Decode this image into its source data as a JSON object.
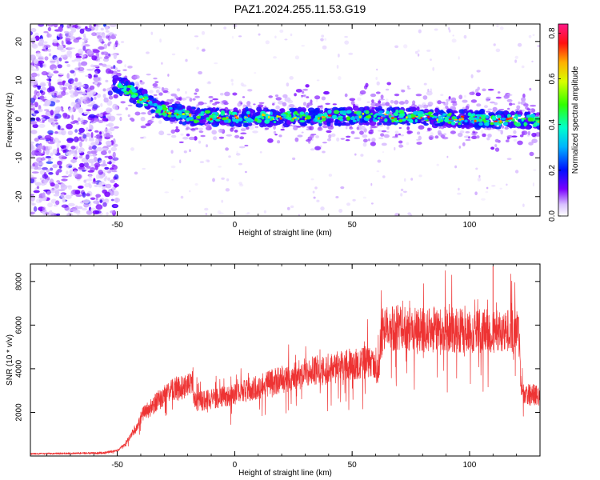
{
  "title": "PAZ1.2024.255.11.53.G19",
  "chart_data": [
    {
      "type": "heatmap",
      "xlabel": "Height of straight line (km)",
      "ylabel": "Frequency (Hz)",
      "xlim": [
        -87,
        130
      ],
      "ylim": [
        -25,
        24.5
      ],
      "xticks": [
        -50,
        0,
        50,
        100
      ],
      "yticks": [
        -20,
        -10,
        0,
        10,
        20
      ],
      "colorbar": {
        "label": "Normalized spectral amplitude",
        "range": [
          0,
          0.84
        ],
        "ticks": [
          0.0,
          0.2,
          0.4,
          0.6,
          0.8
        ],
        "colormap": "rainbow (white-violet-blue-cyan-green-yellow-red-magenta)"
      },
      "ridge": {
        "x": [
          -50,
          -46,
          -42,
          -38,
          -34,
          -30,
          -26,
          -20,
          -10,
          0,
          20,
          40,
          60,
          80,
          100,
          130
        ],
        "frequency": [
          9,
          8,
          6,
          5,
          3,
          2,
          1.5,
          0.8,
          0.5,
          0.5,
          0.5,
          0.6,
          0.8,
          0.5,
          0,
          -0.5
        ]
      },
      "noise_region_x": [
        -87,
        -50
      ]
    },
    {
      "type": "line",
      "xlabel": "Height of straight line (km)",
      "ylabel": "SNR (10 * v/v)",
      "xlim": [
        -87,
        130
      ],
      "ylim": [
        0,
        8800
      ],
      "xticks": [
        -50,
        0,
        50,
        100
      ],
      "yticks": [
        2000,
        4000,
        6000,
        8000
      ],
      "color": "#ee3333",
      "series": [
        {
          "x": [
            -87,
            -70,
            -55,
            -50,
            -47,
            -45,
            -42,
            -40,
            -36,
            -32,
            -28,
            -25,
            -22,
            -18,
            -17,
            -15,
            -10,
            -5,
            0,
            5,
            10,
            20,
            30,
            40,
            50,
            55,
            60,
            61,
            62,
            63,
            70,
            80,
            90,
            100,
            110,
            115,
            121,
            122,
            125,
            130
          ],
          "y": [
            100,
            120,
            150,
            250,
            500,
            800,
            1300,
            1800,
            2200,
            2600,
            2900,
            3100,
            3100,
            3300,
            2500,
            2500,
            2600,
            2700,
            2800,
            3000,
            3200,
            3500,
            3800,
            4000,
            4200,
            4300,
            4300,
            3700,
            5000,
            5800,
            5900,
            5800,
            5800,
            5700,
            5700,
            5700,
            5700,
            3000,
            2800,
            2800
          ]
        }
      ]
    }
  ]
}
